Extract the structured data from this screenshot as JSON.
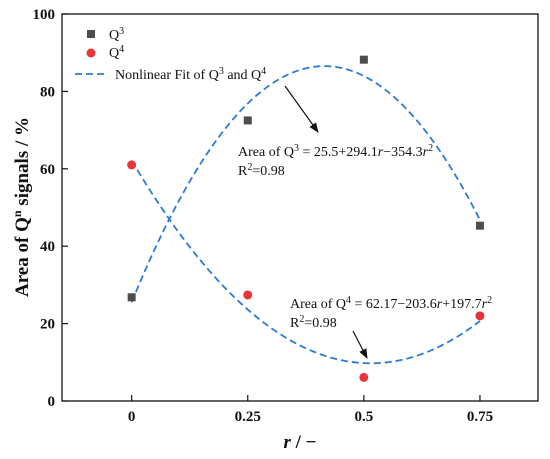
{
  "chart_data": {
    "type": "scatter",
    "xlabel_var": "r",
    "xlabel_unit": "−",
    "ylabel_main": "Area of Q",
    "ylabel_sup": "n",
    "ylabel_rest": " signals / %",
    "xlim": [
      -0.15,
      0.875
    ],
    "ylim": [
      0,
      100
    ],
    "x_ticks": [
      0,
      0.25,
      0.5,
      0.75
    ],
    "x_tick_labels": [
      "0",
      "0.25",
      "0.5",
      "0.75"
    ],
    "y_ticks": [
      0,
      20,
      40,
      60,
      80,
      100
    ],
    "y_tick_labels": [
      "0",
      "20",
      "40",
      "60",
      "80",
      "100"
    ],
    "series": [
      {
        "name_base": "Q",
        "name_sup": "3",
        "marker": "square",
        "color": "#4d4d4d",
        "x": [
          0,
          0.25,
          0.5,
          0.75
        ],
        "values": [
          26.8,
          72.5,
          88.2,
          45.3
        ]
      },
      {
        "name_base": "Q",
        "name_sup": "4",
        "marker": "circle",
        "color": "#e8353b",
        "x": [
          0,
          0.25,
          0.5,
          0.75
        ],
        "values": [
          61.0,
          27.4,
          6.1,
          22.0
        ]
      }
    ],
    "fit": {
      "legend_pre": "Nonlinear Fit of Q",
      "legend_sup1": "3",
      "legend_mid": " and Q",
      "legend_sup2": "4",
      "color": "#2b7bd6",
      "style": "dashed",
      "q3_coeffs": [
        25.5,
        294.1,
        -354.3
      ],
      "q4_coeffs": [
        62.17,
        -203.6,
        197.7
      ]
    },
    "annotations": {
      "q3_eq_a": "Area  of Q",
      "q3_eq_sup": "3",
      "q3_eq_b": " = 25.5+294.1",
      "q3_eq_r1": "r",
      "q3_eq_c": "−354.3",
      "q3_eq_r2": "r",
      "q3_eq_sq": "2",
      "q3_r2_base": "R",
      "q3_r2_sup": "2",
      "q3_r2_val": "=0.98",
      "q4_eq_a": "Area of Q",
      "q4_eq_sup": "4",
      "q4_eq_b": " = 62.17−203.6",
      "q4_eq_r1": "r",
      "q4_eq_c": "+197.7",
      "q4_eq_r2": "r",
      "q4_eq_sq": "2",
      "q4_r2_base": "R",
      "q4_r2_sup": "2",
      "q4_r2_val": "=0.98"
    },
    "legend_position": "top-left",
    "grid": false
  }
}
